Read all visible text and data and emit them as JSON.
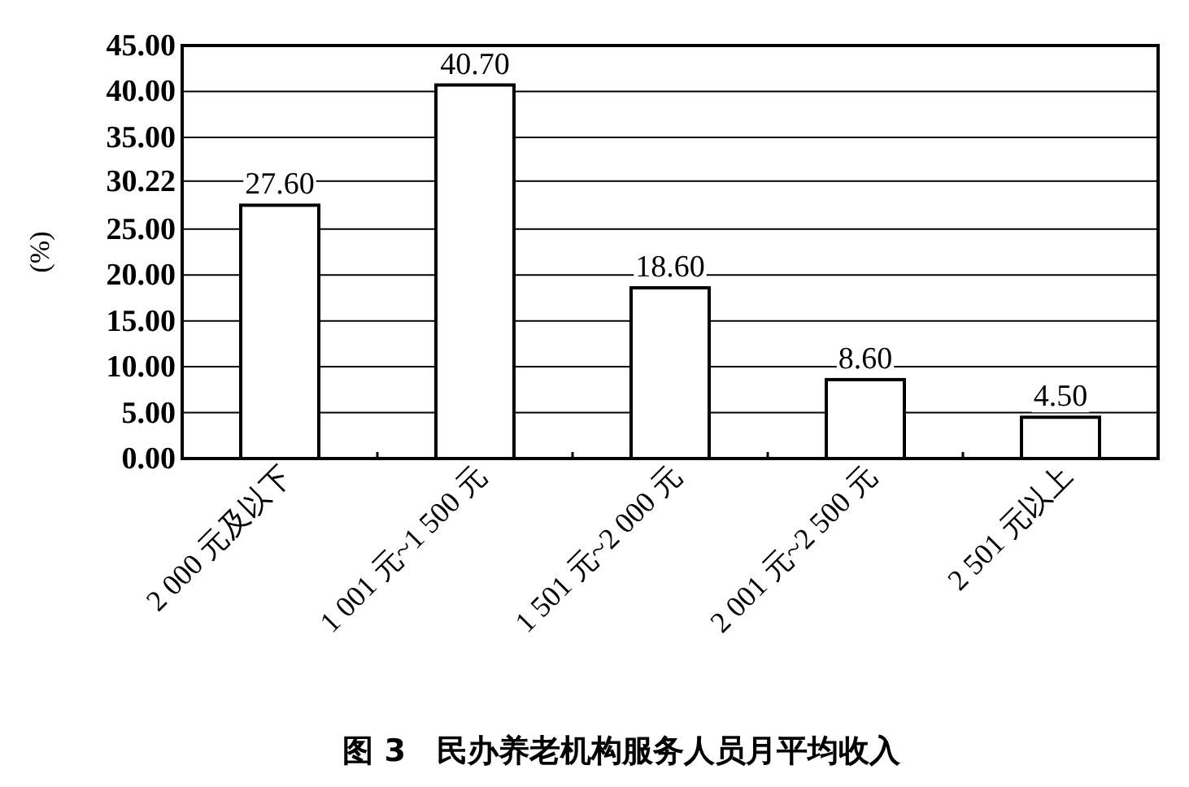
{
  "chart_data": {
    "type": "bar",
    "title": "图 3　民办养老机构服务人员月平均收入",
    "ylabel": "(%)",
    "categories": [
      "2 000 元及以下",
      "1 001 元~1 500 元",
      "1 501 元~2 000 元",
      "2 001 元~2 500 元",
      "2 501 元以上"
    ],
    "values": [
      27.6,
      40.7,
      18.6,
      8.6,
      4.5
    ],
    "value_labels": [
      "27.60",
      "40.70",
      "18.60",
      "8.60",
      "4.50"
    ],
    "color": "#ffffff",
    "ylim": [
      0,
      45
    ],
    "yticks": [
      {
        "value": 0,
        "label": "0.00"
      },
      {
        "value": 5,
        "label": "5.00"
      },
      {
        "value": 10,
        "label": "10.00"
      },
      {
        "value": 15,
        "label": "15.00"
      },
      {
        "value": 20,
        "label": "20.00"
      },
      {
        "value": 25,
        "label": "25.00"
      },
      30.22,
      {
        "value": 35,
        "label": "35.00"
      },
      {
        "value": 40,
        "label": "40.00"
      },
      {
        "value": 45,
        "label": "45.00"
      }
    ],
    "grid": "y"
  }
}
